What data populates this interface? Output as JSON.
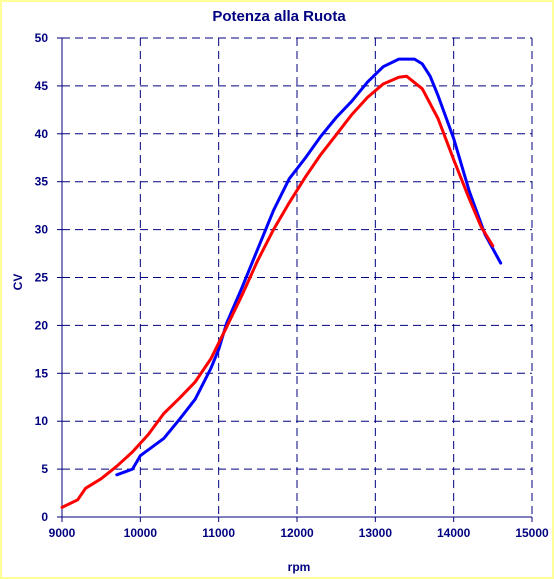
{
  "chart_data": {
    "type": "line",
    "title": "Potenza alla Ruota",
    "xlabel": "rpm",
    "ylabel": "CV",
    "xlim": [
      9000,
      15000
    ],
    "ylim": [
      0,
      50
    ],
    "x_ticks": [
      9000,
      10000,
      11000,
      12000,
      13000,
      14000,
      15000
    ],
    "y_ticks": [
      0,
      5,
      10,
      15,
      20,
      25,
      30,
      35,
      40,
      45,
      50
    ],
    "grid": true,
    "grid_style": "dashed",
    "legend": "none",
    "series": [
      {
        "color": "#0000ff",
        "points": [
          [
            9700,
            4.4
          ],
          [
            9900,
            5.0
          ],
          [
            10000,
            6.4
          ],
          [
            10200,
            7.6
          ],
          [
            10300,
            8.2
          ],
          [
            10500,
            10.2
          ],
          [
            10700,
            12.3
          ],
          [
            10900,
            15.5
          ],
          [
            11000,
            17.5
          ],
          [
            11100,
            20.2
          ],
          [
            11300,
            24.0
          ],
          [
            11500,
            28.0
          ],
          [
            11700,
            32.0
          ],
          [
            11900,
            35.3
          ],
          [
            12100,
            37.4
          ],
          [
            12300,
            39.7
          ],
          [
            12500,
            41.7
          ],
          [
            12700,
            43.4
          ],
          [
            12900,
            45.4
          ],
          [
            13100,
            47.0
          ],
          [
            13300,
            47.8
          ],
          [
            13500,
            47.8
          ],
          [
            13600,
            47.3
          ],
          [
            13700,
            46.0
          ],
          [
            13800,
            44.0
          ],
          [
            14000,
            39.5
          ],
          [
            14200,
            34.0
          ],
          [
            14400,
            29.5
          ],
          [
            14600,
            26.5
          ]
        ]
      },
      {
        "color": "#ff0000",
        "points": [
          [
            9000,
            1.0
          ],
          [
            9200,
            1.8
          ],
          [
            9300,
            3.0
          ],
          [
            9500,
            4.0
          ],
          [
            9700,
            5.3
          ],
          [
            9900,
            6.8
          ],
          [
            10100,
            8.6
          ],
          [
            10300,
            10.8
          ],
          [
            10500,
            12.4
          ],
          [
            10700,
            14.1
          ],
          [
            10900,
            16.5
          ],
          [
            11100,
            19.8
          ],
          [
            11300,
            23.2
          ],
          [
            11500,
            26.8
          ],
          [
            11700,
            30.0
          ],
          [
            11900,
            32.8
          ],
          [
            12100,
            35.4
          ],
          [
            12300,
            37.8
          ],
          [
            12500,
            39.9
          ],
          [
            12700,
            42.0
          ],
          [
            12900,
            43.8
          ],
          [
            13100,
            45.2
          ],
          [
            13300,
            45.9
          ],
          [
            13400,
            46.0
          ],
          [
            13600,
            44.7
          ],
          [
            13800,
            41.6
          ],
          [
            14000,
            37.3
          ],
          [
            14200,
            33.2
          ],
          [
            14350,
            30.3
          ],
          [
            14500,
            28.3
          ]
        ]
      }
    ]
  }
}
